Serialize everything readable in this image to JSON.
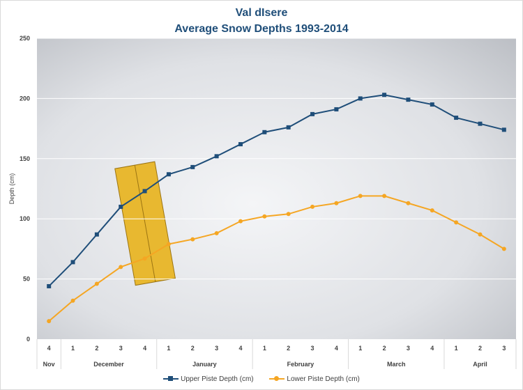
{
  "chart_data": {
    "type": "line",
    "title": "Val dIsere",
    "subtitle": "Average Snow Depths 1993-2014",
    "xlabel": "",
    "ylabel": "Depth (cm)",
    "ylim": [
      0,
      250
    ],
    "yticks": [
      0,
      50,
      100,
      150,
      200,
      250
    ],
    "grid": true,
    "legend_position": "bottom",
    "categories": [
      "4",
      "1",
      "2",
      "3",
      "4",
      "1",
      "2",
      "3",
      "4",
      "1",
      "2",
      "3",
      "4",
      "1",
      "2",
      "3",
      "4",
      "1",
      "2",
      "3"
    ],
    "month_groups": [
      {
        "label": "Nov",
        "count": 1
      },
      {
        "label": "December",
        "count": 4
      },
      {
        "label": "January",
        "count": 4
      },
      {
        "label": "February",
        "count": 4
      },
      {
        "label": "March",
        "count": 4
      },
      {
        "label": "April",
        "count": 3
      }
    ],
    "series": [
      {
        "name": "Upper Piste Depth (cm)",
        "color": "#1f4e79",
        "marker": "square",
        "values": [
          44,
          64,
          87,
          110,
          123,
          137,
          143,
          152,
          162,
          172,
          176,
          187,
          191,
          200,
          203,
          199,
          195,
          184,
          179,
          174
        ]
      },
      {
        "name": "Lower Piste Depth (cm)",
        "color": "#f5a623",
        "marker": "circle",
        "values": [
          15,
          32,
          46,
          60,
          67,
          79,
          83,
          88,
          98,
          102,
          104,
          110,
          113,
          119,
          119,
          113,
          107,
          97,
          87,
          75
        ]
      }
    ]
  }
}
